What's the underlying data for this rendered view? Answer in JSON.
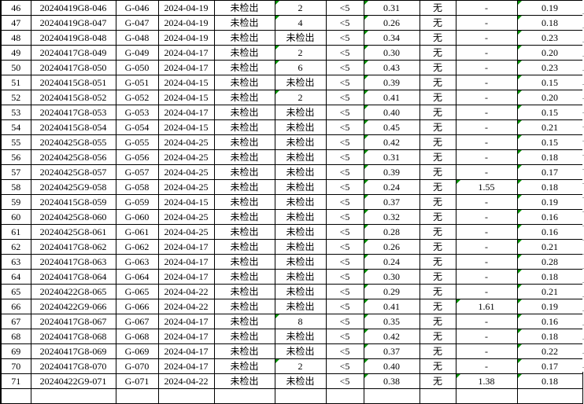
{
  "colors": {
    "grid_line": "#000000",
    "marker_green": "#009100",
    "faint_grid_line": "#ababab",
    "background": "#ffffff",
    "text": "#000000"
  },
  "table": {
    "column_names": [
      "row-number",
      "sample-id",
      "site-code",
      "sampling-date",
      "result-a",
      "result-b",
      "result-c",
      "result-d",
      "result-e",
      "result-f",
      "result-g"
    ],
    "rows": [
      {
        "cells": [
          "46",
          "20240419G8-046",
          "G-046",
          "2024-04-19",
          "未检出",
          "2",
          "<5",
          "0.31",
          "无",
          "-",
          "0.19"
        ],
        "markers": [
          5,
          7,
          10
        ]
      },
      {
        "cells": [
          "47",
          "20240419G8-047",
          "G-047",
          "2024-04-19",
          "未检出",
          "4",
          "<5",
          "0.26",
          "无",
          "-",
          "0.18"
        ],
        "markers": [
          5,
          7,
          10
        ]
      },
      {
        "cells": [
          "48",
          "20240419G8-048",
          "G-048",
          "2024-04-19",
          "未检出",
          "未检出",
          "<5",
          "0.34",
          "无",
          "-",
          "0.23"
        ],
        "markers": [
          7,
          10
        ]
      },
      {
        "cells": [
          "49",
          "20240417G8-049",
          "G-049",
          "2024-04-17",
          "未检出",
          "2",
          "<5",
          "0.30",
          "无",
          "-",
          "0.20"
        ],
        "markers": [
          5,
          7,
          10
        ]
      },
      {
        "cells": [
          "50",
          "20240417G8-050",
          "G-050",
          "2024-04-17",
          "未检出",
          "6",
          "<5",
          "0.43",
          "无",
          "-",
          "0.23"
        ],
        "markers": [
          5,
          7,
          10
        ]
      },
      {
        "cells": [
          "51",
          "20240415G8-051",
          "G-051",
          "2024-04-15",
          "未检出",
          "未检出",
          "<5",
          "0.39",
          "无",
          "-",
          "0.15"
        ],
        "markers": [
          7,
          10
        ]
      },
      {
        "cells": [
          "52",
          "20240415G8-052",
          "G-052",
          "2024-04-15",
          "未检出",
          "2",
          "<5",
          "0.41",
          "无",
          "-",
          "0.20"
        ],
        "markers": [
          5,
          7,
          10
        ]
      },
      {
        "cells": [
          "53",
          "20240417G8-053",
          "G-053",
          "2024-04-17",
          "未检出",
          "未检出",
          "<5",
          "0.40",
          "无",
          "-",
          "0.15"
        ],
        "markers": [
          7,
          10
        ]
      },
      {
        "cells": [
          "54",
          "20240415G8-054",
          "G-054",
          "2024-04-15",
          "未检出",
          "未检出",
          "<5",
          "0.45",
          "无",
          "-",
          "0.21"
        ],
        "markers": [
          7,
          10
        ]
      },
      {
        "cells": [
          "55",
          "20240425G8-055",
          "G-055",
          "2024-04-25",
          "未检出",
          "未检出",
          "<5",
          "0.42",
          "无",
          "-",
          "0.15"
        ],
        "markers": [
          7,
          10
        ]
      },
      {
        "cells": [
          "56",
          "20240425G8-056",
          "G-056",
          "2024-04-25",
          "未检出",
          "未检出",
          "<5",
          "0.31",
          "无",
          "-",
          "0.18"
        ],
        "markers": [
          7,
          10
        ]
      },
      {
        "cells": [
          "57",
          "20240425G8-057",
          "G-057",
          "2024-04-25",
          "未检出",
          "未检出",
          "<5",
          "0.39",
          "无",
          "-",
          "0.17"
        ],
        "markers": [
          7,
          10
        ]
      },
      {
        "cells": [
          "58",
          "20240425G9-058",
          "G-058",
          "2024-04-25",
          "未检出",
          "未检出",
          "<5",
          "0.24",
          "无",
          "1.55",
          "0.18"
        ],
        "markers": [
          7,
          9,
          10
        ]
      },
      {
        "cells": [
          "59",
          "20240415G8-059",
          "G-059",
          "2024-04-15",
          "未检出",
          "未检出",
          "<5",
          "0.37",
          "无",
          "-",
          "0.19"
        ],
        "markers": [
          7,
          10
        ]
      },
      {
        "cells": [
          "60",
          "20240425G8-060",
          "G-060",
          "2024-04-25",
          "未检出",
          "未检出",
          "<5",
          "0.32",
          "无",
          "-",
          "0.16"
        ],
        "markers": [
          7,
          10
        ]
      },
      {
        "cells": [
          "61",
          "20240425G8-061",
          "G-061",
          "2024-04-25",
          "未检出",
          "未检出",
          "<5",
          "0.28",
          "无",
          "-",
          "0.16"
        ],
        "markers": [
          7,
          10
        ]
      },
      {
        "cells": [
          "62",
          "20240417G8-062",
          "G-062",
          "2024-04-17",
          "未检出",
          "未检出",
          "<5",
          "0.26",
          "无",
          "-",
          "0.21"
        ],
        "markers": [
          7,
          10
        ]
      },
      {
        "cells": [
          "63",
          "20240417G8-063",
          "G-063",
          "2024-04-17",
          "未检出",
          "未检出",
          "<5",
          "0.24",
          "无",
          "-",
          "0.28"
        ],
        "markers": [
          7,
          10
        ]
      },
      {
        "cells": [
          "64",
          "20240417G8-064",
          "G-064",
          "2024-04-17",
          "未检出",
          "未检出",
          "<5",
          "0.30",
          "无",
          "-",
          "0.18"
        ],
        "markers": [
          7,
          10
        ]
      },
      {
        "cells": [
          "65",
          "20240422G8-065",
          "G-065",
          "2024-04-22",
          "未检出",
          "未检出",
          "<5",
          "0.29",
          "无",
          "-",
          "0.21"
        ],
        "markers": [
          7,
          10
        ]
      },
      {
        "cells": [
          "66",
          "20240422G9-066",
          "G-066",
          "2024-04-22",
          "未检出",
          "未检出",
          "<5",
          "0.41",
          "无",
          "1.61",
          "0.19"
        ],
        "markers": [
          7,
          9,
          10
        ]
      },
      {
        "cells": [
          "67",
          "20240417G8-067",
          "G-067",
          "2024-04-17",
          "未检出",
          "8",
          "<5",
          "0.35",
          "无",
          "-",
          "0.16"
        ],
        "markers": [
          5,
          7,
          10
        ]
      },
      {
        "cells": [
          "68",
          "20240417G8-068",
          "G-068",
          "2024-04-17",
          "未检出",
          "未检出",
          "<5",
          "0.42",
          "无",
          "-",
          "0.18"
        ],
        "markers": [
          7,
          10
        ]
      },
      {
        "cells": [
          "69",
          "20240417G8-069",
          "G-069",
          "2024-04-17",
          "未检出",
          "未检出",
          "<5",
          "0.37",
          "无",
          "-",
          "0.22"
        ],
        "markers": [
          7,
          10
        ]
      },
      {
        "cells": [
          "70",
          "20240417G8-070",
          "G-070",
          "2024-04-17",
          "未检出",
          "2",
          "<5",
          "0.40",
          "无",
          "-",
          "0.17"
        ],
        "markers": [
          5,
          7,
          10
        ]
      },
      {
        "cells": [
          "71",
          "20240422G9-071",
          "G-071",
          "2024-04-22",
          "未检出",
          "未检出",
          "<5",
          "0.38",
          "无",
          "1.38",
          "0.18"
        ],
        "markers": [
          7,
          9,
          10
        ]
      },
      {
        "cells": [
          "",
          "",
          "",
          "",
          "",
          "",
          "",
          "",
          "",
          "",
          ""
        ],
        "markers": []
      }
    ]
  }
}
